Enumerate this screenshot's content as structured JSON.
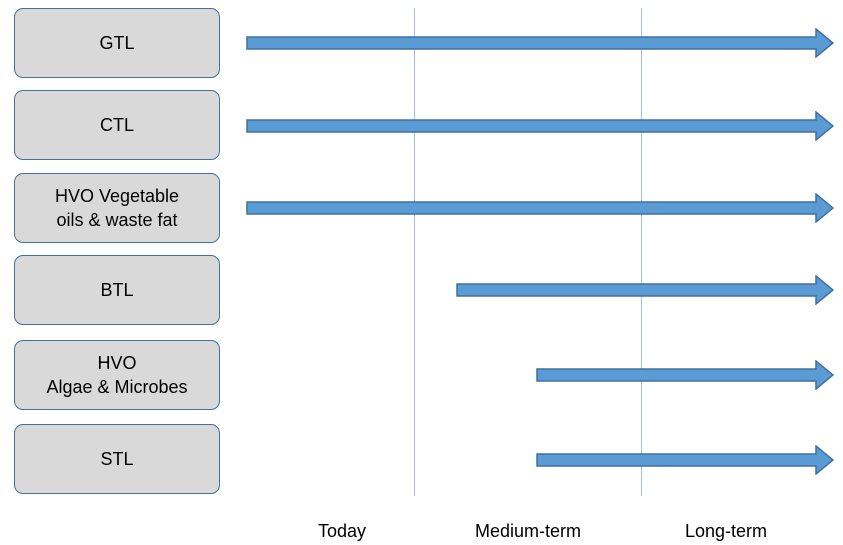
{
  "rows": [
    {
      "label": "GTL",
      "starts_at": "Today"
    },
    {
      "label": "CTL",
      "starts_at": "Today"
    },
    {
      "label": "HVO Vegetable\noils & waste fat",
      "starts_at": "Today"
    },
    {
      "label": "BTL",
      "starts_at": "Medium-term"
    },
    {
      "label": "HVO\nAlgae & Microbes",
      "starts_at": "Medium-term"
    },
    {
      "label": "STL",
      "starts_at": "Medium-term"
    }
  ],
  "periods": [
    "Today",
    "Medium-term",
    "Long-term"
  ],
  "colors": {
    "box_fill": "#d9d9d9",
    "box_border": "#41719c",
    "arrow_fill": "#5b9bd5",
    "arrow_stroke": "#41719c",
    "divider": "#9dc3e6"
  }
}
